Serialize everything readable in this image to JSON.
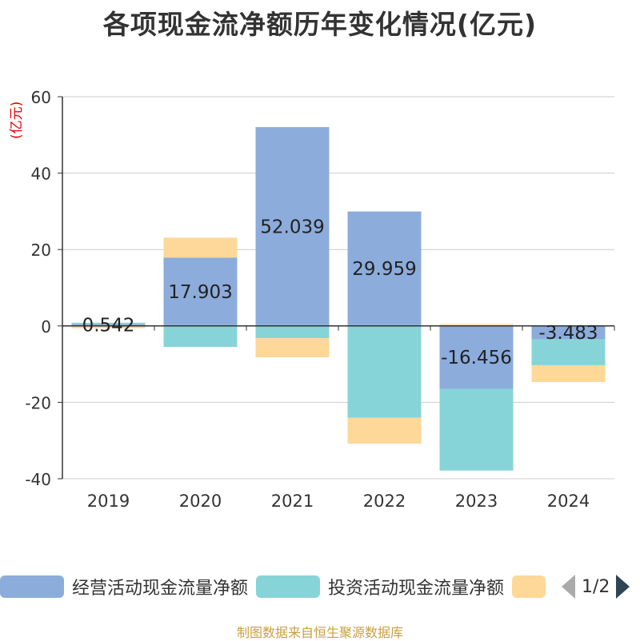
{
  "title": "各项现金流净额历年变化情况(亿元)",
  "unit_label": "(亿元)",
  "source": "制图数据来自恒生聚源数据库",
  "legend": {
    "items": [
      {
        "label": "经营活动现金流量净额",
        "color": "#8cacdb"
      },
      {
        "label": "投资活动现金流量净额",
        "color": "#86d4d8"
      },
      {
        "label": "",
        "color": "#fdd898"
      }
    ],
    "page_text": "1/2"
  },
  "chart_data": {
    "type": "bar",
    "stacked": true,
    "categories": [
      "2019",
      "2020",
      "2021",
      "2022",
      "2023",
      "2024"
    ],
    "series": [
      {
        "name": "经营活动现金流量净额",
        "color": "#8cacdb",
        "values": [
          0.542,
          17.903,
          52.039,
          29.959,
          -16.456,
          -3.483
        ]
      },
      {
        "name": "投资活动现金流量净额",
        "color": "#86d4d8",
        "values": [
          0.3,
          -5.5,
          -3.2,
          -24.0,
          -21.4,
          -6.8
        ]
      },
      {
        "name": "",
        "color": "#fdd898",
        "values": [
          -0.6,
          5.2,
          -5.0,
          -6.8,
          0.5,
          -4.4
        ]
      }
    ],
    "data_labels": [
      "0.542",
      "17.903",
      "52.039",
      "29.959",
      "-16.456",
      "-3.483"
    ],
    "yticks": [
      60,
      40,
      20,
      0,
      -20,
      -40
    ],
    "ylim": [
      -40,
      60
    ],
    "grid": true
  }
}
